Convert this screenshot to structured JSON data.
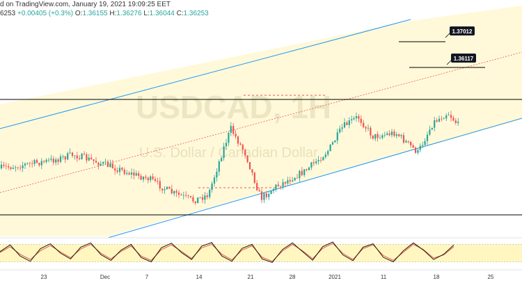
{
  "header": {
    "source_line": "d on TradingView.com, January 19, 2021 19:09:25 EET",
    "price_prefix": "6253",
    "change": "+0.00405 (+0.3%)",
    "o_label": "O:",
    "o_value": "1.36155",
    "h_label": "H:",
    "h_value": "1.36276",
    "l_label": "L:",
    "l_value": "1.36044",
    "c_label": "C:",
    "c_value": "1.36253"
  },
  "watermark": {
    "symbol": "USDCAD, 1H",
    "description": "U.S. Dollar / Canadian Dollar"
  },
  "annotations": [
    {
      "label": "1.37012",
      "kind": "resistance"
    },
    {
      "label": "1.36117",
      "kind": "support"
    }
  ],
  "colors": {
    "channel_line": "#2196f3",
    "channel_fill": "#fff9d9",
    "candle_up": "#26a69a",
    "candle_down": "#ef5350",
    "stoch_k": "#1a1a1a",
    "stoch_d": "#ef5350",
    "stoch_band": "#fff7bf",
    "horizontal": "#000000",
    "dashed": "#ef5350"
  },
  "chart_data": {
    "type": "candlestick",
    "x_tick_labels": [
      "23",
      "Dec",
      "7",
      "14",
      "21",
      "28",
      "2021",
      "11",
      "18",
      "25"
    ],
    "price_range": [
      1.265,
      1.373
    ],
    "price_anchors": [
      {
        "x": "Nov 16",
        "price": 1.299
      },
      {
        "x": "Nov 23",
        "price": 1.303
      },
      {
        "x": "Nov 26",
        "price": 1.306
      },
      {
        "x": "Dec 1",
        "price": 1.3
      },
      {
        "x": "Dec 4",
        "price": 1.296
      },
      {
        "x": "Dec 6",
        "price": 1.294
      },
      {
        "x": "Dec 9",
        "price": 1.287
      },
      {
        "x": "Dec 12",
        "price": 1.283
      },
      {
        "x": "Dec 14",
        "price": 1.286
      },
      {
        "x": "Dec 16",
        "price": 1.309
      },
      {
        "x": "Dec 17",
        "price": 1.319
      },
      {
        "x": "Dec 19",
        "price": 1.306
      },
      {
        "x": "Dec 21",
        "price": 1.284
      },
      {
        "x": "Dec 23",
        "price": 1.29
      },
      {
        "x": "Dec 27",
        "price": 1.298
      },
      {
        "x": "Dec 30",
        "price": 1.308
      },
      {
        "x": "Jan 1",
        "price": 1.32
      },
      {
        "x": "Jan 3",
        "price": 1.325
      },
      {
        "x": "Jan 5",
        "price": 1.315
      },
      {
        "x": "Jan 8",
        "price": 1.317
      },
      {
        "x": "Jan 11",
        "price": 1.307
      },
      {
        "x": "Jan 13",
        "price": 1.322
      },
      {
        "x": "Jan 15",
        "price": 1.327
      },
      {
        "x": "Jan 17",
        "price": 1.318
      },
      {
        "x": "Jan 18",
        "price": 1.312
      },
      {
        "x": "Jan 19",
        "price": 1.319
      }
    ],
    "horizontal_levels": [
      1.329,
      1.283
    ],
    "marked_levels": [
      1.37012,
      1.36117
    ],
    "stochastic": {
      "band": [
        20,
        80
      ],
      "k_values": [
        55,
        78,
        40,
        22,
        65,
        82,
        50,
        30,
        70,
        85,
        45,
        25,
        60,
        80,
        35,
        20,
        68,
        84,
        52,
        28,
        74,
        86,
        40,
        22,
        66,
        80,
        30,
        18,
        62,
        85,
        55,
        26,
        72,
        88,
        44,
        24,
        70,
        82,
        36,
        20,
        58,
        85,
        60,
        28,
        46,
        78
      ],
      "d_values": [
        52,
        72,
        46,
        28,
        58,
        76,
        54,
        34,
        64,
        80,
        50,
        30,
        56,
        74,
        40,
        25,
        62,
        78,
        56,
        32,
        68,
        80,
        46,
        27,
        60,
        75,
        36,
        22,
        57,
        80,
        58,
        31,
        66,
        83,
        49,
        28,
        65,
        78,
        42,
        25,
        53,
        80,
        62,
        33,
        44,
        72
      ]
    }
  }
}
